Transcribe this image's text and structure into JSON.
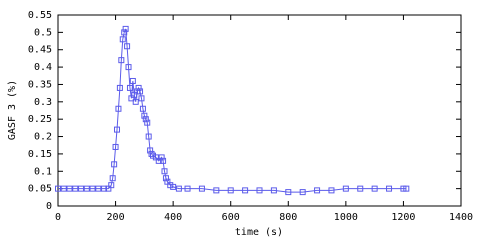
{
  "chart_data": {
    "type": "line",
    "xlabel": "time (s)",
    "ylabel": "GASF 3 (%)",
    "x": [
      0,
      20,
      40,
      60,
      80,
      100,
      120,
      140,
      160,
      175,
      185,
      190,
      195,
      200,
      205,
      210,
      215,
      220,
      225,
      230,
      235,
      240,
      245,
      250,
      255,
      260,
      265,
      270,
      275,
      280,
      285,
      290,
      295,
      300,
      305,
      310,
      315,
      320,
      325,
      330,
      340,
      350,
      360,
      365,
      370,
      375,
      380,
      390,
      400,
      420,
      450,
      500,
      550,
      600,
      650,
      700,
      750,
      800,
      850,
      900,
      950,
      1000,
      1050,
      1100,
      1150,
      1200,
      1210
    ],
    "series": [
      {
        "color": "#5b5bea",
        "values": [
          0.05,
          0.05,
          0.05,
          0.05,
          0.05,
          0.05,
          0.05,
          0.05,
          0.05,
          0.05,
          0.06,
          0.08,
          0.12,
          0.17,
          0.22,
          0.28,
          0.34,
          0.42,
          0.48,
          0.5,
          0.51,
          0.46,
          0.4,
          0.34,
          0.31,
          0.36,
          0.32,
          0.3,
          0.33,
          0.34,
          0.33,
          0.31,
          0.28,
          0.26,
          0.25,
          0.24,
          0.2,
          0.16,
          0.15,
          0.145,
          0.14,
          0.13,
          0.14,
          0.13,
          0.1,
          0.08,
          0.07,
          0.06,
          0.055,
          0.05,
          0.05,
          0.05,
          0.045,
          0.045,
          0.045,
          0.045,
          0.045,
          0.04,
          0.04,
          0.045,
          0.045,
          0.05,
          0.05,
          0.05,
          0.05,
          0.05,
          0.05
        ]
      }
    ],
    "xlim": [
      0,
      1400
    ],
    "xticks": [
      0,
      200,
      400,
      600,
      800,
      1000,
      1200,
      1400
    ],
    "ylim": [
      0,
      0.55
    ],
    "yticks": [
      0,
      0.05,
      0.1,
      0.15,
      0.2,
      0.25,
      0.3,
      0.35,
      0.4,
      0.45,
      0.5,
      0.55
    ]
  }
}
